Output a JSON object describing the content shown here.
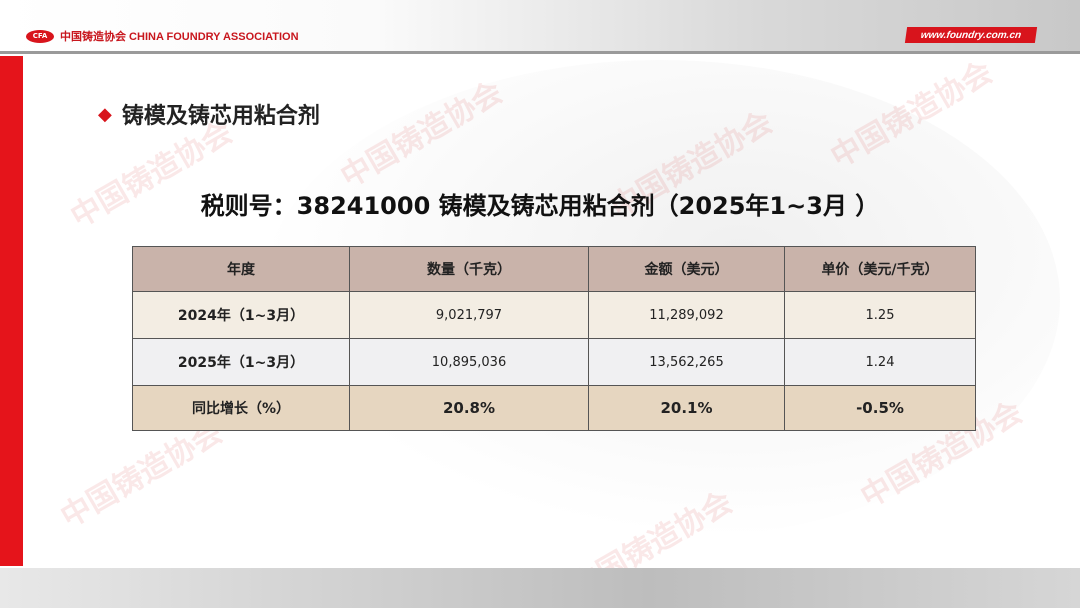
{
  "header": {
    "logo_mark": "CFA",
    "logo_text": "中国铸造协会 CHINA FOUNDRY ASSOCIATION",
    "website": "www.foundry.com.cn"
  },
  "watermark": "中国铸造协会",
  "section_title": "铸模及铸芯用粘合剂",
  "subtitle": "税则号：38241000  铸模及铸芯用粘合剂（2025年1~3月 ）",
  "table": {
    "headers": [
      "年度",
      "数量（千克）",
      "金额（美元）",
      "单价（美元/千克）"
    ],
    "rows": [
      [
        "2024年（1~3月）",
        "9,021,797",
        "11,289,092",
        "1.25"
      ],
      [
        "2025年（1~3月）",
        "10,895,036",
        "13,562,265",
        "1.24"
      ],
      [
        "同比增长（%）",
        "20.8%",
        "20.1%",
        "-0.5%"
      ]
    ]
  },
  "colors": {
    "accent": "#e5141b",
    "header_row": "#c9b3aa",
    "row_2024": "#f3ede3",
    "row_2025": "#f0f0f2",
    "row_growth": "#e6d6c0"
  }
}
